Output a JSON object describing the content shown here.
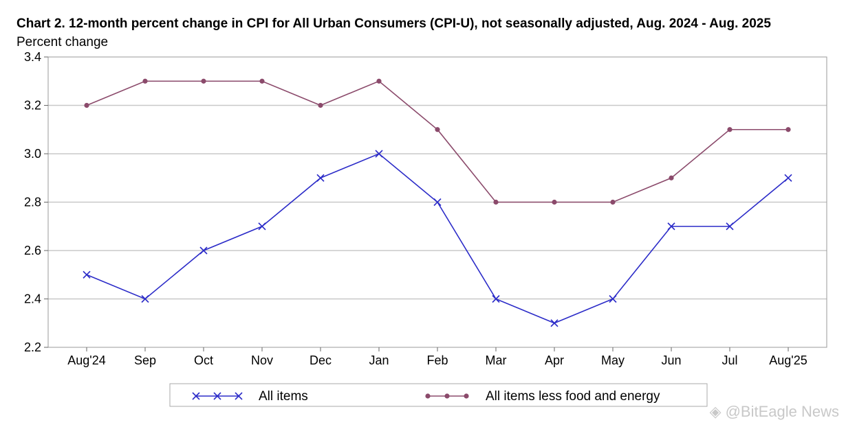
{
  "chart_data": {
    "type": "line",
    "title": "Chart 2. 12-month percent change in CPI for All Urban Consumers (CPI-U), not seasonally adjusted, Aug. 2024 - Aug. 2025",
    "ylabel": "Percent change",
    "xlabel": "",
    "categories": [
      "Aug'24",
      "Sep",
      "Oct",
      "Nov",
      "Dec",
      "Jan",
      "Feb",
      "Mar",
      "Apr",
      "May",
      "Jun",
      "Jul",
      "Aug'25"
    ],
    "ylim": [
      2.2,
      3.4
    ],
    "yticks": [
      "2.2",
      "2.4",
      "2.6",
      "2.8",
      "3.0",
      "3.2",
      "3.4"
    ],
    "grid": true,
    "legend_position": "bottom",
    "series": [
      {
        "name": "All items",
        "color": "#2b2bc8",
        "marker": "x",
        "values": [
          2.5,
          2.4,
          2.6,
          2.7,
          2.9,
          3.0,
          2.8,
          2.4,
          2.3,
          2.4,
          2.7,
          2.7,
          2.9
        ]
      },
      {
        "name": "All items less food and energy",
        "color": "#8b4a6b",
        "marker": "circle",
        "values": [
          3.2,
          3.3,
          3.3,
          3.3,
          3.2,
          3.3,
          3.1,
          2.8,
          2.8,
          2.8,
          2.9,
          3.1,
          3.1
        ]
      }
    ]
  },
  "watermark": "◈ @BitEagle News"
}
